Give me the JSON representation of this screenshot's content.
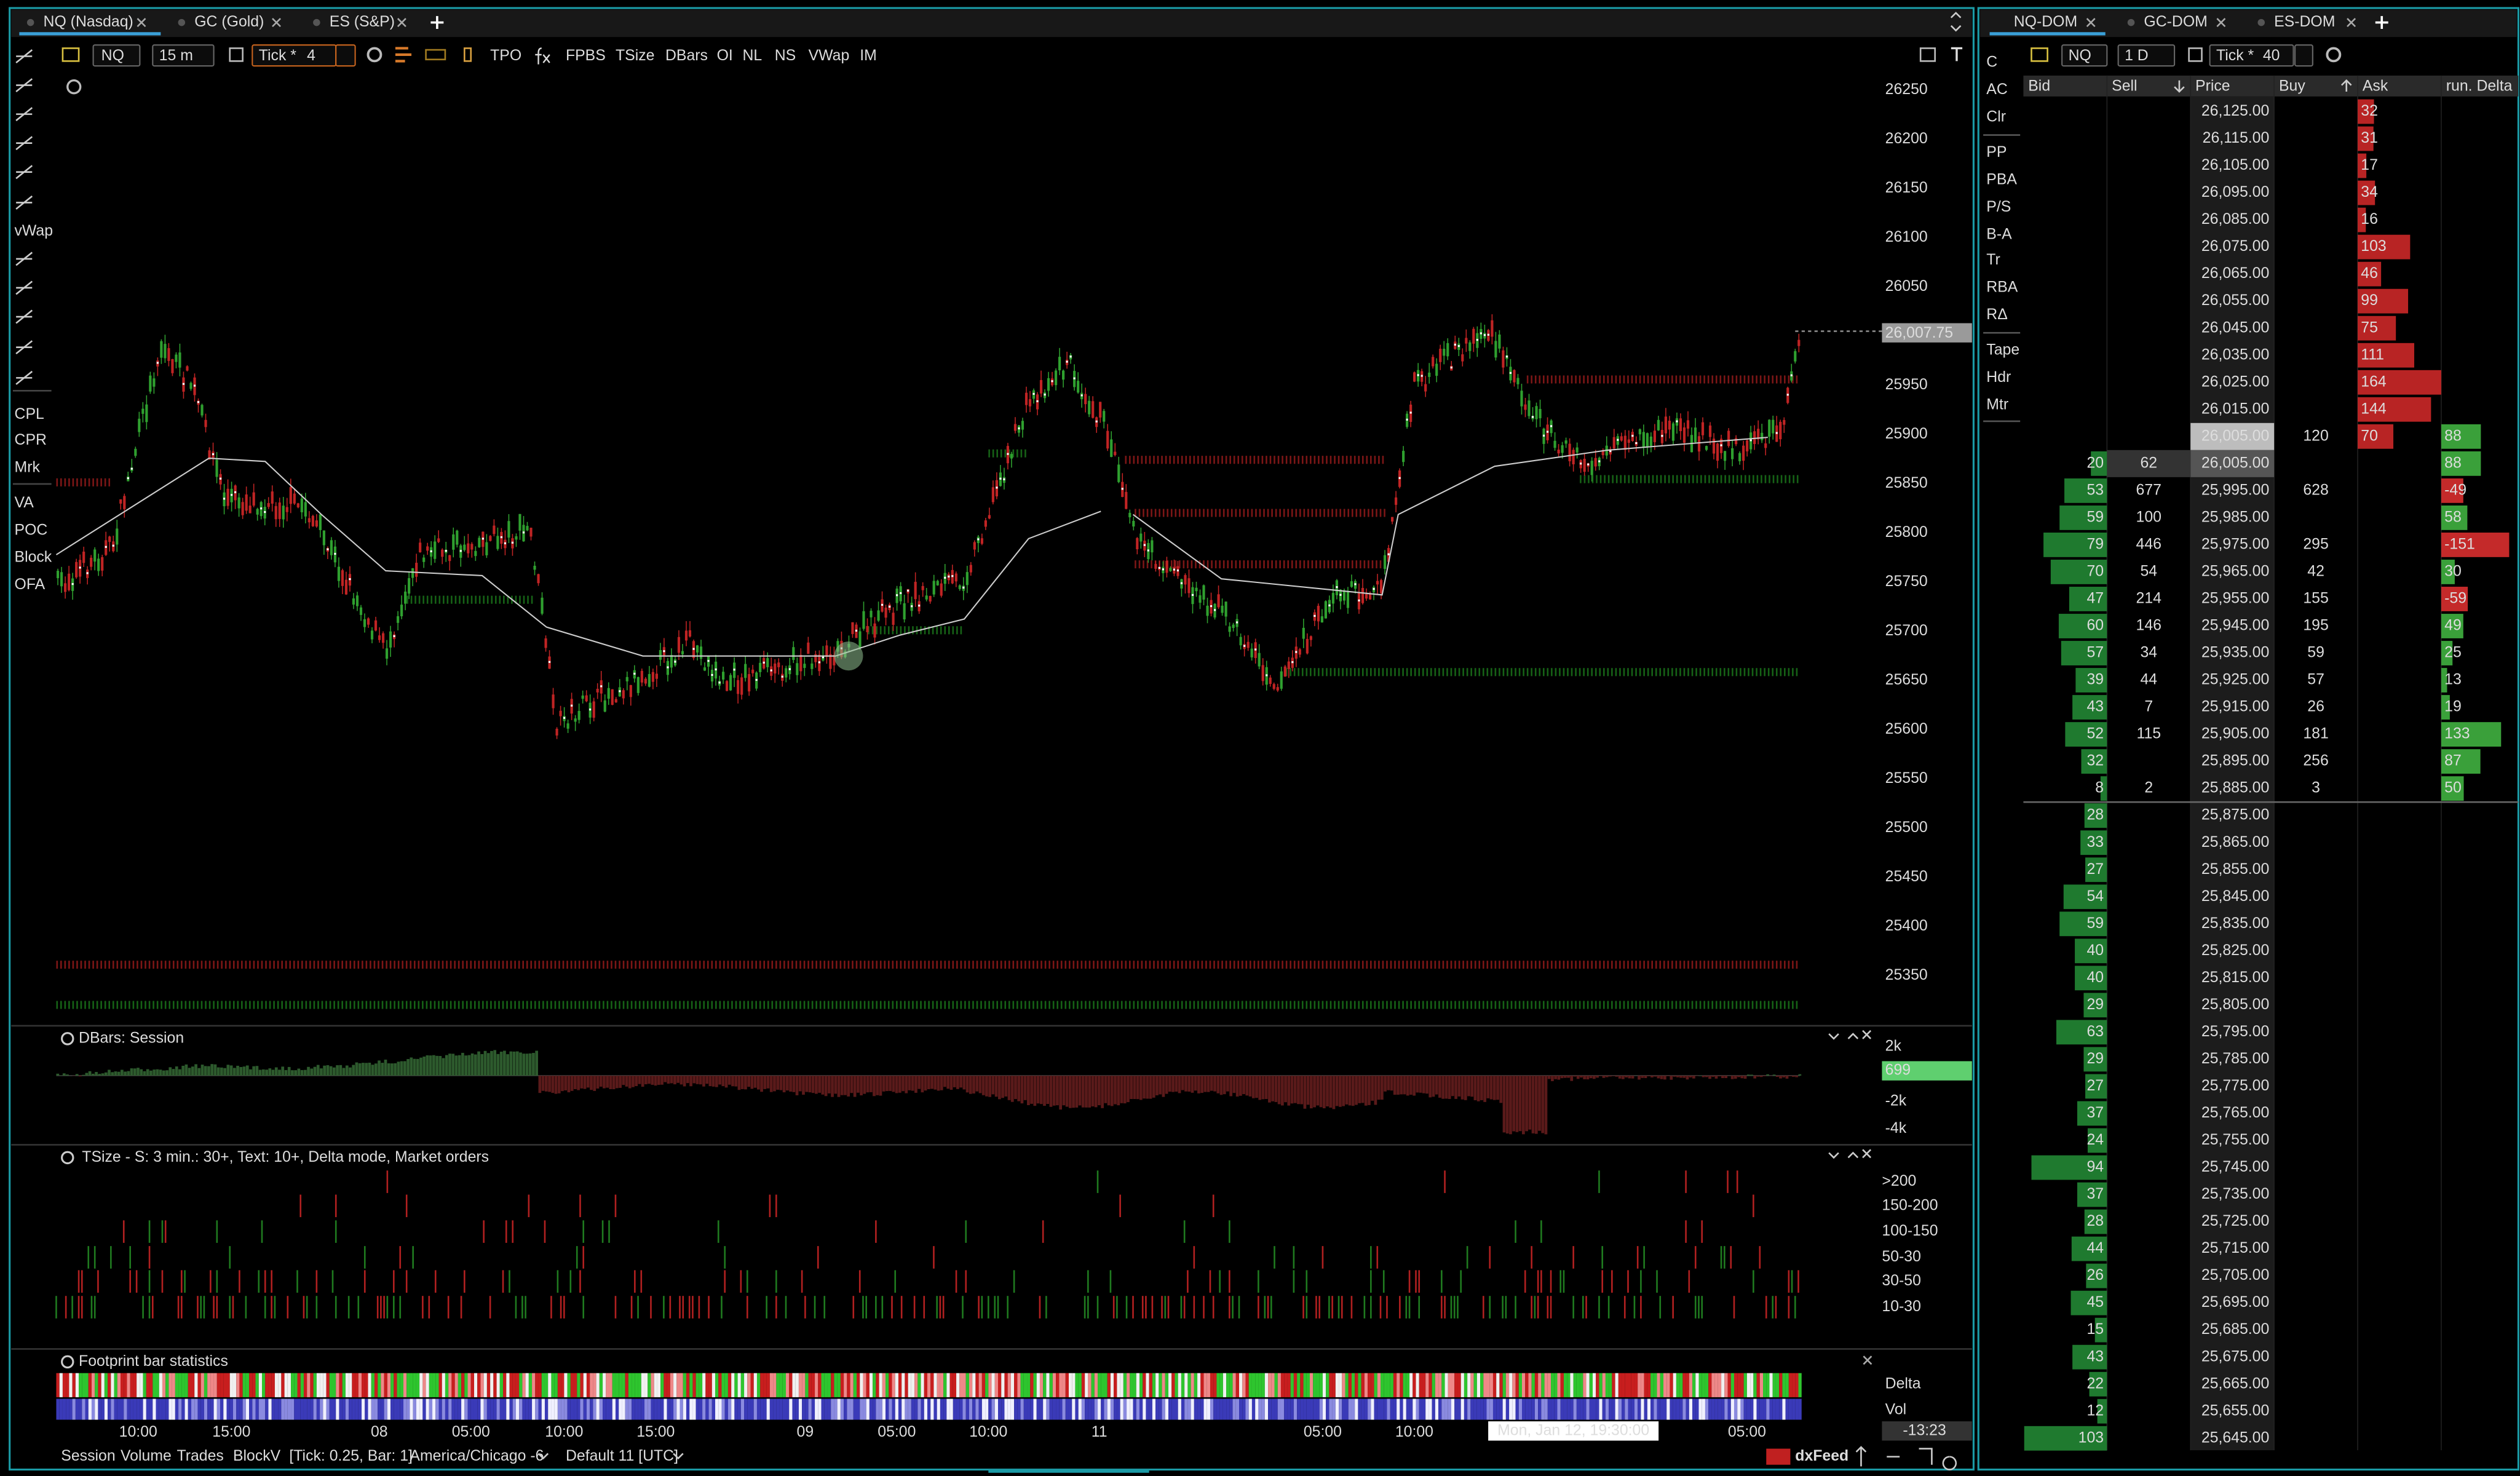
{
  "tabs_left": [
    "NQ (Nasdaq)",
    "GC (Gold)",
    "ES (S&P)"
  ],
  "tabs_right": [
    "NQ-DOM",
    "GC-DOM",
    "ES-DOM"
  ],
  "chart_toolbar": {
    "symbol": "NQ",
    "timeframe": "15 m",
    "tick_label": "Tick *",
    "tick_value": 4,
    "buttons": [
      "TPO",
      "FPBS",
      "TSize",
      "DBars",
      "OI",
      "NL",
      "NS",
      "VWap",
      "IM"
    ]
  },
  "left_tools": [
    "vWap",
    "CPL",
    "CPR",
    "Mrk",
    "VA",
    "POC",
    "Block",
    "OFA"
  ],
  "price_axis": {
    "labels": [
      26250,
      26200,
      26150,
      26100,
      26050,
      26000,
      25950,
      25900,
      25850,
      25800,
      25750,
      25700,
      25650,
      25600,
      25550,
      25500,
      25450,
      25400,
      25350
    ],
    "current": "26,007.75"
  },
  "time_axis": {
    "labels": [
      "10:00",
      "15:00",
      "08",
      "05:00",
      "10:00",
      "15:00",
      "09",
      "05:00",
      "10:00",
      "11",
      "05:00",
      "10:00",
      "05:00"
    ],
    "crosshair": "Mon, Jan 12, 19:30:00"
  },
  "panes": {
    "dbars": {
      "title": "DBars: Session",
      "labels": [
        "2k",
        "699",
        "-2k",
        "-4k"
      ]
    },
    "tsize": {
      "title": "TSize - S: 3 min.: 30+, Text: 10+, Delta mode,  Market orders",
      "labels": [
        ">200",
        "150-200",
        "100-150",
        "50-30",
        "30-50",
        "10-30"
      ]
    },
    "footprint": {
      "title": "Footprint bar statistics",
      "labels": [
        "Delta",
        "Vol"
      ],
      "timer": "-13:23"
    }
  },
  "status_bar": [
    "Session",
    "Volume",
    "Trades",
    "BlockV",
    "[Tick: 0.25, Bar: 1]",
    "America/Chicago -6",
    "Default 11 [UTC]"
  ],
  "brand": "dxFeed",
  "dom": {
    "toolbar": {
      "symbol": "NQ",
      "period": "1 D",
      "tick_label": "Tick *",
      "tick_value": 40
    },
    "side_buttons": [
      "C",
      "AC",
      "Clr",
      "PP",
      "PBA",
      "P/S",
      "B-A",
      "Tr",
      "RBA",
      "RΔ",
      "Tape",
      "Hdr",
      "Mtr"
    ],
    "columns": [
      "Bid",
      "Sell",
      "Price",
      "Buy",
      "Ask",
      "run. Delta"
    ],
    "rows": [
      [
        null,
        null,
        "26,125.00",
        null,
        32,
        null
      ],
      [
        null,
        null,
        "26,115.00",
        null,
        31,
        null
      ],
      [
        null,
        null,
        "26,105.00",
        null,
        17,
        null
      ],
      [
        null,
        null,
        "26,095.00",
        null,
        34,
        null
      ],
      [
        null,
        null,
        "26,085.00",
        null,
        16,
        null
      ],
      [
        null,
        null,
        "26,075.00",
        null,
        103,
        null
      ],
      [
        null,
        null,
        "26,065.00",
        null,
        46,
        null
      ],
      [
        null,
        null,
        "26,055.00",
        null,
        99,
        null
      ],
      [
        null,
        null,
        "26,045.00",
        null,
        75,
        null
      ],
      [
        null,
        null,
        "26,035.00",
        null,
        111,
        null
      ],
      [
        null,
        null,
        "26,025.00",
        null,
        164,
        null
      ],
      [
        null,
        null,
        "26,015.00",
        null,
        144,
        null
      ],
      [
        null,
        null,
        "26,005.00",
        120,
        70,
        88
      ],
      [
        20,
        62,
        "26,005.00",
        null,
        null,
        88
      ],
      [
        53,
        677,
        "25,995.00",
        628,
        null,
        -49
      ],
      [
        59,
        100,
        "25,985.00",
        null,
        null,
        58
      ],
      [
        79,
        446,
        "25,975.00",
        295,
        null,
        -151
      ],
      [
        70,
        54,
        "25,965.00",
        42,
        null,
        30
      ],
      [
        47,
        214,
        "25,955.00",
        155,
        null,
        -59
      ],
      [
        60,
        146,
        "25,945.00",
        195,
        null,
        49
      ],
      [
        57,
        34,
        "25,935.00",
        59,
        null,
        25
      ],
      [
        39,
        44,
        "25,925.00",
        57,
        null,
        13
      ],
      [
        43,
        7,
        "25,915.00",
        26,
        null,
        19
      ],
      [
        52,
        115,
        "25,905.00",
        181,
        null,
        133
      ],
      [
        32,
        null,
        "25,895.00",
        256,
        null,
        87
      ],
      [
        8,
        2,
        "25,885.00",
        3,
        null,
        50
      ],
      [
        28,
        null,
        "25,875.00",
        null,
        null,
        null
      ],
      [
        33,
        null,
        "25,865.00",
        null,
        null,
        null
      ],
      [
        27,
        null,
        "25,855.00",
        null,
        null,
        null
      ],
      [
        54,
        null,
        "25,845.00",
        null,
        null,
        null
      ],
      [
        59,
        null,
        "25,835.00",
        null,
        null,
        null
      ],
      [
        40,
        null,
        "25,825.00",
        null,
        null,
        null
      ],
      [
        40,
        null,
        "25,815.00",
        null,
        null,
        null
      ],
      [
        29,
        null,
        "25,805.00",
        null,
        null,
        null
      ],
      [
        63,
        null,
        "25,795.00",
        null,
        null,
        null
      ],
      [
        29,
        null,
        "25,785.00",
        null,
        null,
        null
      ],
      [
        27,
        null,
        "25,775.00",
        null,
        null,
        null
      ],
      [
        37,
        null,
        "25,765.00",
        null,
        null,
        null
      ],
      [
        24,
        null,
        "25,755.00",
        null,
        null,
        null
      ],
      [
        94,
        null,
        "25,745.00",
        null,
        null,
        null
      ],
      [
        37,
        null,
        "25,735.00",
        null,
        null,
        null
      ],
      [
        28,
        null,
        "25,725.00",
        null,
        null,
        null
      ],
      [
        44,
        null,
        "25,715.00",
        null,
        null,
        null
      ],
      [
        26,
        null,
        "25,705.00",
        null,
        null,
        null
      ],
      [
        45,
        null,
        "25,695.00",
        null,
        null,
        null
      ],
      [
        15,
        null,
        "25,685.00",
        null,
        null,
        null
      ],
      [
        43,
        null,
        "25,675.00",
        null,
        null,
        null
      ],
      [
        22,
        null,
        "25,665.00",
        null,
        null,
        null
      ],
      [
        12,
        null,
        "25,655.00",
        null,
        null,
        null
      ],
      [
        103,
        null,
        "25,645.00",
        null,
        null,
        null
      ]
    ]
  }
}
